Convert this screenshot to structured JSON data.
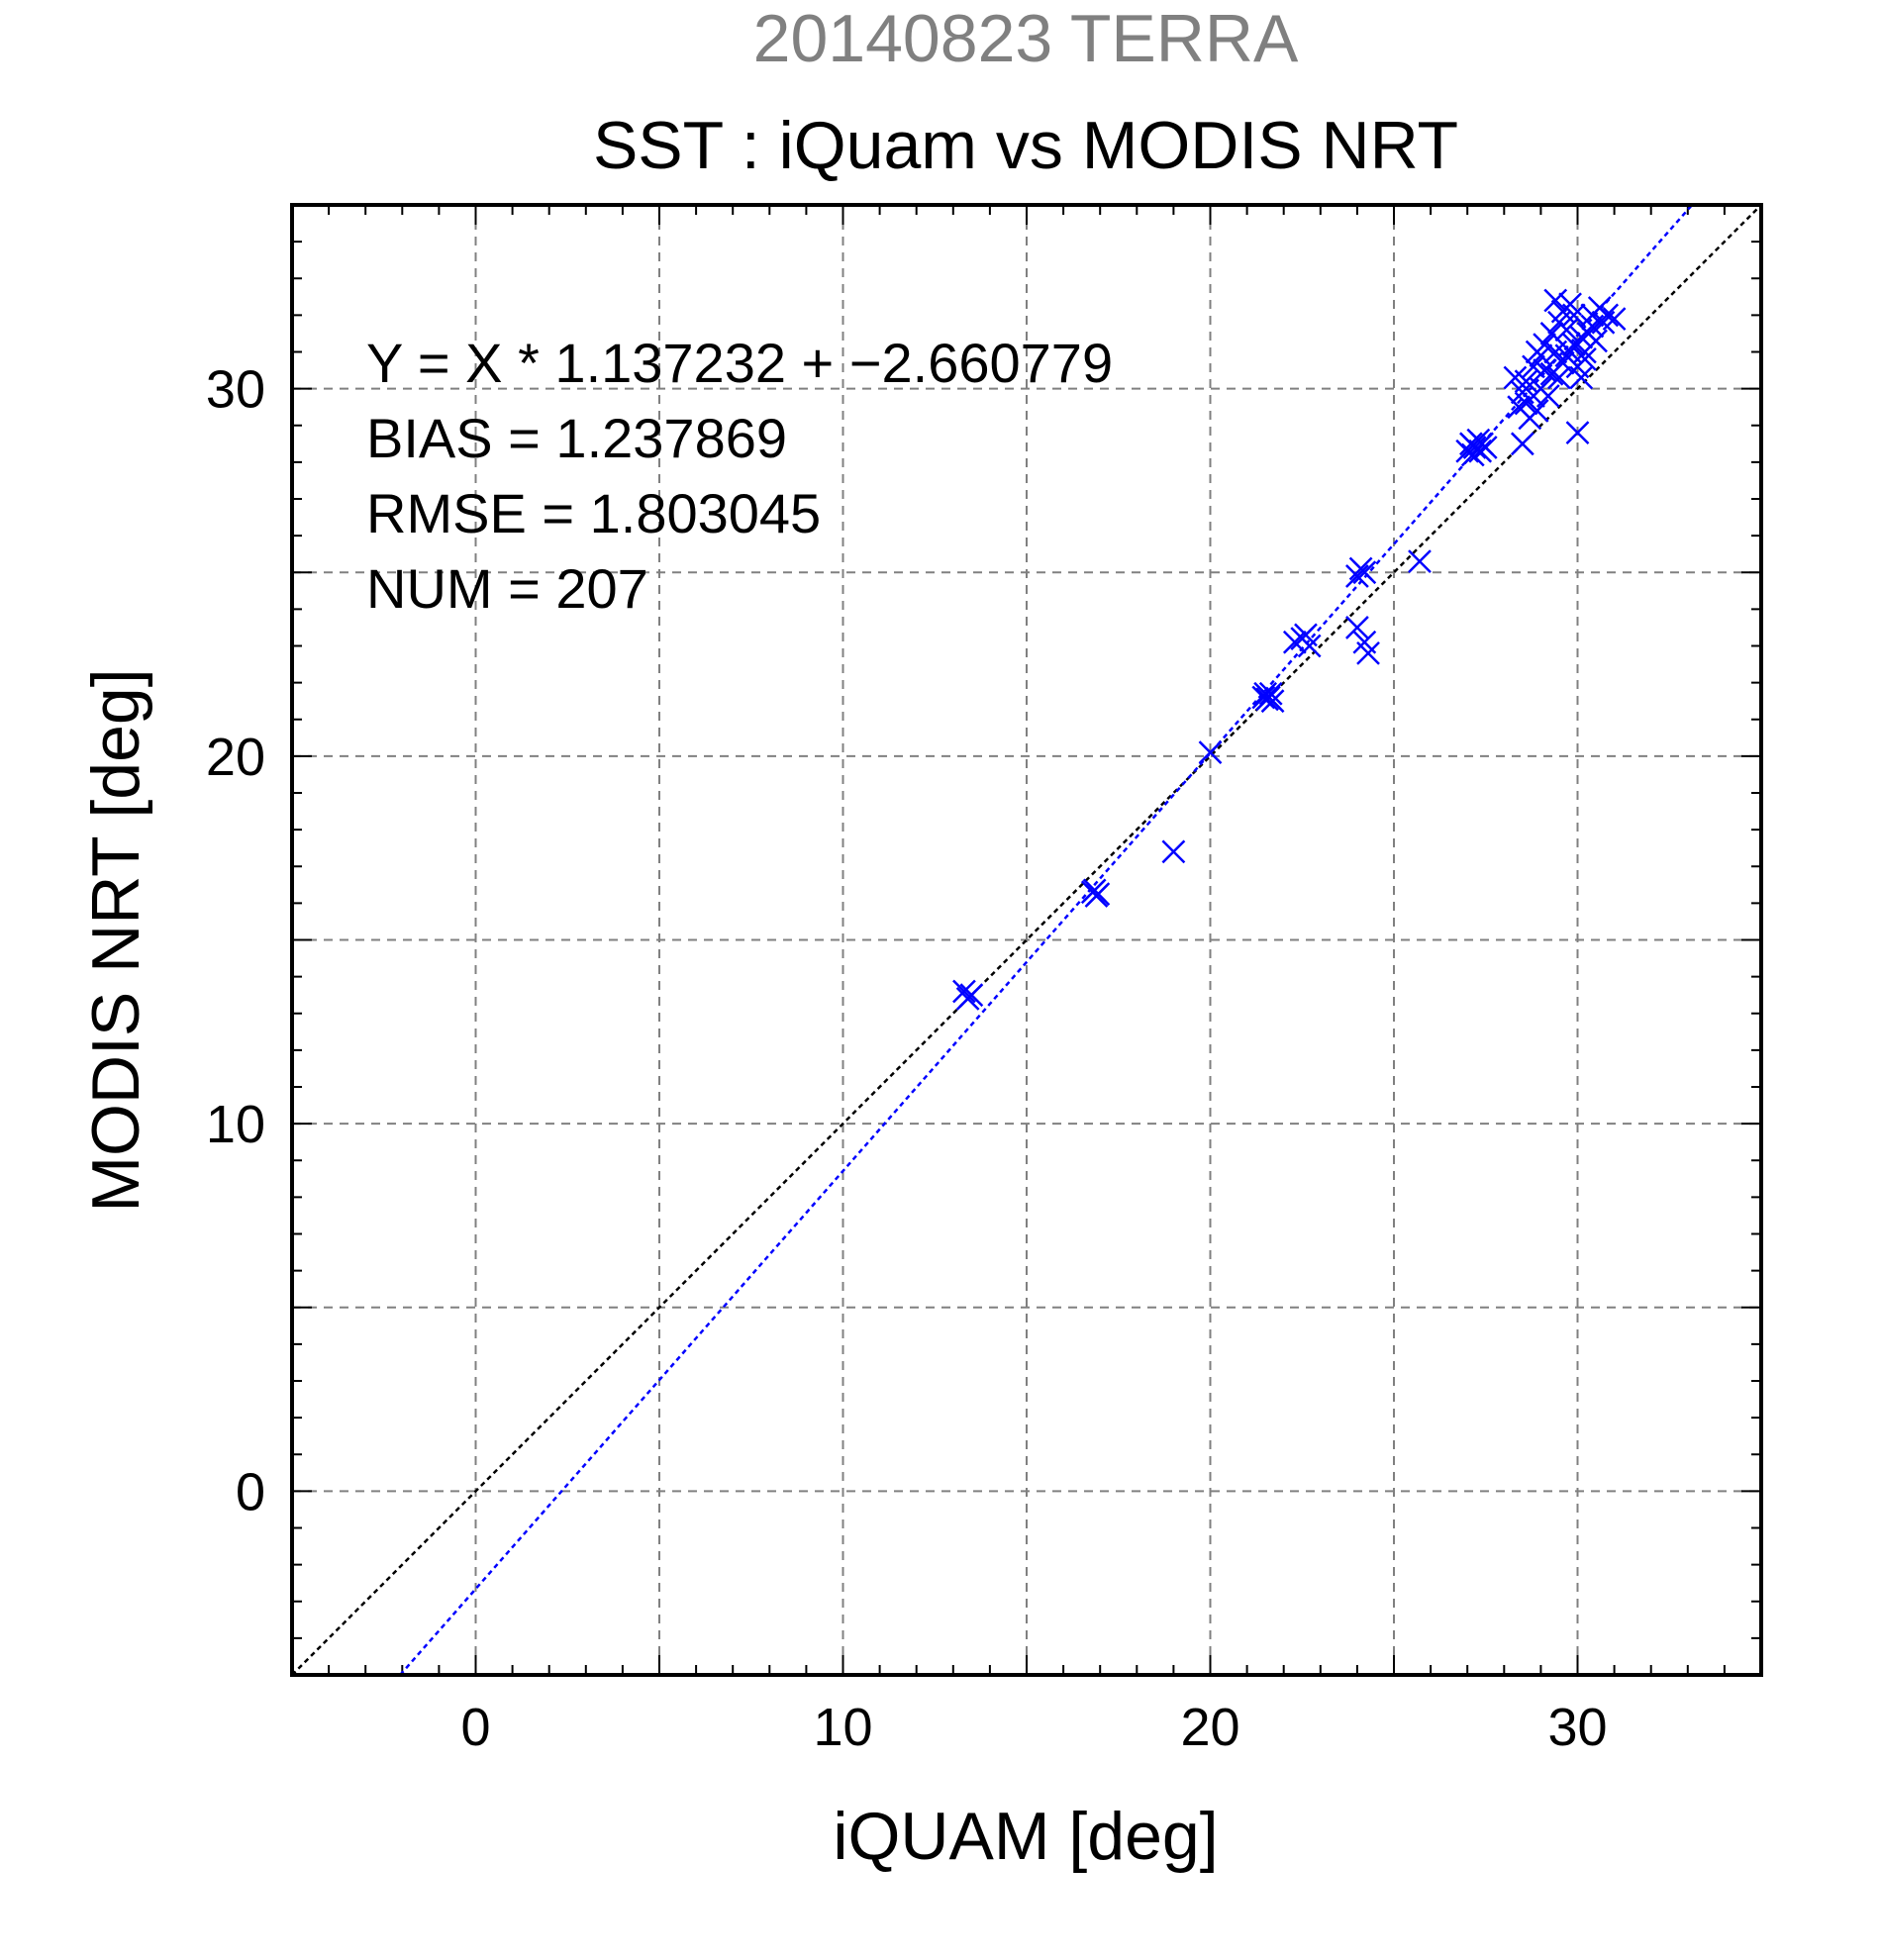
{
  "chart_data": {
    "type": "scatter",
    "supertitle": "20140823 TERRA",
    "title": "SST : iQuam vs MODIS NRT",
    "xlabel": "iQUAM [deg]",
    "ylabel": "MODIS NRT [deg]",
    "xlim": [
      -5,
      35
    ],
    "ylim": [
      -5,
      35
    ],
    "xticks": [
      0,
      10,
      20,
      30
    ],
    "yticks": [
      0,
      10,
      20,
      30
    ],
    "grid": true,
    "annotations": [
      "Y = X * 1.137232 + −2.660779",
      "BIAS = 1.237869",
      "RMSE = 1.803045",
      "NUM = 207"
    ],
    "fit_line": {
      "slope": 1.137232,
      "intercept": -2.660779
    },
    "identity_line": {
      "slope": 1,
      "intercept": 0
    },
    "colors": {
      "points": "#0000ff",
      "fit_line": "#0000ff",
      "identity_line": "#000000",
      "supertitle": "#808080",
      "grid": "#808080"
    },
    "series": [
      {
        "points": [
          [
            13.3,
            13.6
          ],
          [
            13.5,
            13.5
          ],
          [
            13.4,
            13.4
          ],
          [
            16.8,
            16.3
          ],
          [
            16.9,
            16.2
          ],
          [
            16.95,
            16.25
          ],
          [
            16.85,
            16.35
          ],
          [
            19.0,
            17.4
          ],
          [
            20.0,
            20.1
          ],
          [
            21.5,
            21.7
          ],
          [
            21.6,
            21.6
          ],
          [
            21.7,
            21.5
          ],
          [
            21.55,
            21.55
          ],
          [
            21.65,
            21.7
          ],
          [
            21.45,
            21.6
          ],
          [
            22.3,
            23.1
          ],
          [
            22.5,
            23.2
          ],
          [
            22.7,
            23.0
          ],
          [
            22.6,
            23.3
          ],
          [
            24.0,
            24.9
          ],
          [
            24.1,
            25.1
          ],
          [
            24.2,
            25.0
          ],
          [
            24.0,
            23.5
          ],
          [
            24.2,
            23.1
          ],
          [
            24.3,
            22.8
          ],
          [
            25.7,
            25.3
          ],
          [
            27.0,
            28.3
          ],
          [
            27.1,
            28.5
          ],
          [
            27.2,
            28.4
          ],
          [
            27.3,
            28.6
          ],
          [
            27.4,
            28.5
          ],
          [
            27.5,
            28.4
          ],
          [
            27.15,
            28.2
          ],
          [
            27.35,
            28.3
          ],
          [
            28.5,
            28.5
          ],
          [
            30.0,
            28.8
          ],
          [
            28.4,
            29.5
          ],
          [
            28.6,
            30.2
          ],
          [
            28.8,
            30.6
          ],
          [
            29.0,
            30.9
          ],
          [
            29.1,
            31.2
          ],
          [
            29.3,
            31.5
          ],
          [
            29.5,
            31.8
          ],
          [
            29.6,
            32.1
          ],
          [
            29.8,
            32.3
          ],
          [
            29.4,
            32.4
          ],
          [
            29.7,
            31.6
          ],
          [
            29.9,
            31.2
          ],
          [
            30.0,
            30.6
          ],
          [
            30.1,
            30.3
          ],
          [
            30.2,
            31.0
          ],
          [
            30.3,
            31.5
          ],
          [
            30.4,
            32.0
          ],
          [
            30.6,
            32.2
          ],
          [
            30.8,
            32.0
          ],
          [
            31.0,
            31.9
          ],
          [
            30.5,
            31.3
          ],
          [
            29.2,
            29.8
          ],
          [
            28.9,
            29.4
          ],
          [
            28.7,
            29.2
          ],
          [
            28.5,
            29.9
          ],
          [
            28.3,
            30.3
          ],
          [
            29.0,
            30.0
          ],
          [
            29.3,
            30.4
          ],
          [
            29.6,
            30.7
          ],
          [
            29.8,
            31.0
          ],
          [
            30.1,
            31.4
          ],
          [
            30.2,
            30.8
          ],
          [
            29.4,
            31.0
          ],
          [
            29.1,
            30.5
          ],
          [
            28.8,
            29.8
          ],
          [
            28.6,
            29.6
          ],
          [
            30.4,
            31.7
          ],
          [
            30.7,
            31.8
          ],
          [
            29.9,
            32.0
          ],
          [
            29.5,
            30.3
          ],
          [
            29.7,
            30.9
          ],
          [
            28.9,
            31.0
          ]
        ]
      }
    ]
  }
}
